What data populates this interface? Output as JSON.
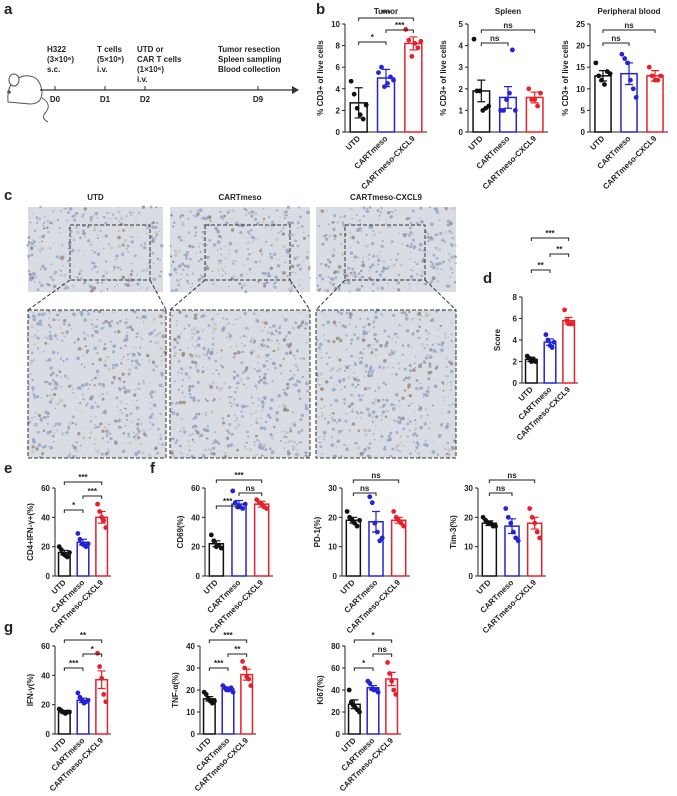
{
  "panel_labels": [
    "a",
    "b",
    "c",
    "d",
    "e",
    "f",
    "g"
  ],
  "timeline": {
    "events": [
      {
        "day": "D0",
        "lines": [
          "H322",
          "(3×10⁶)",
          "s.c."
        ]
      },
      {
        "day": "D1",
        "lines": [
          "T cells",
          "(5×10⁶)",
          "i.v."
        ]
      },
      {
        "day": "D2",
        "lines": [
          "UTD or",
          "CAR T cells",
          "(1×10⁶)",
          "i.v."
        ]
      },
      {
        "day": "D9",
        "lines": [
          "Tumor  resection",
          "Spleen sampling",
          "Blood collection"
        ]
      }
    ]
  },
  "ihc": {
    "titles": [
      "UTD",
      "CARTmeso",
      "CARTmeso-CXCL9"
    ]
  },
  "chart_data": [
    {
      "type": "bar",
      "title": "Tumor",
      "ylabel": "% CD3+ of live cells",
      "categories": [
        "UTD",
        "CARTmeso",
        "CARTmeso-CXCL9"
      ],
      "colors": [
        "#111111",
        "#2323d8",
        "#e8202a"
      ],
      "values": [
        2.7,
        5.0,
        8.2
      ],
      "errors": [
        1.4,
        0.8,
        0.6
      ],
      "points": [
        [
          4.7,
          3.5,
          2.2,
          1.6,
          1.2,
          2.5
        ],
        [
          5.5,
          6.0,
          4.2,
          4.5,
          5.1,
          4.8
        ],
        [
          9.5,
          8.5,
          7.0,
          8.2,
          7.8,
          8.4
        ]
      ],
      "ylim": [
        0,
        10
      ],
      "yticks": [
        0,
        2,
        4,
        6,
        8,
        10
      ],
      "brackets": [
        {
          "from": 0,
          "to": 1,
          "label": "*"
        },
        {
          "from": 1,
          "to": 2,
          "label": "***"
        },
        {
          "from": 0,
          "to": 2,
          "label": "***"
        }
      ]
    },
    {
      "type": "bar",
      "title": "Spleen",
      "ylabel": "% CD3+ of live cells",
      "categories": [
        "UTD",
        "CARTmeso",
        "CARTmeso-CXCL9"
      ],
      "colors": [
        "#111111",
        "#2323d8",
        "#e8202a"
      ],
      "values": [
        1.9,
        1.6,
        1.6
      ],
      "errors": [
        0.5,
        0.5,
        0.25
      ],
      "points": [
        [
          4.3,
          1.9,
          1.9,
          1.0,
          1.1,
          1.2
        ],
        [
          1.0,
          1.0,
          1.5,
          1.8,
          3.8,
          1.0
        ],
        [
          2.0,
          1.5,
          1.5,
          1.2,
          1.8
        ]
      ],
      "ylim": [
        0,
        5
      ],
      "yticks": [
        0,
        1,
        2,
        3,
        4,
        5
      ],
      "brackets": [
        {
          "from": 0,
          "to": 1,
          "label": "ns"
        },
        {
          "from": 0,
          "to": 2,
          "label": "ns"
        }
      ]
    },
    {
      "type": "bar",
      "title": "Peripheral blood",
      "ylabel": "% CD3+ of live cells",
      "categories": [
        "UTD",
        "CARTmeso",
        "CARTmeso-CXCL9"
      ],
      "colors": [
        "#111111",
        "#2323d8",
        "#e8202a"
      ],
      "values": [
        13,
        13.5,
        13
      ],
      "errors": [
        1.2,
        2.5,
        1.2
      ],
      "points": [
        [
          16,
          13,
          12,
          11,
          14,
          13.5
        ],
        [
          18,
          17,
          16,
          12,
          10,
          8
        ],
        [
          15,
          13,
          12,
          12,
          13
        ]
      ],
      "ylim": [
        0,
        25
      ],
      "yticks": [
        0,
        5,
        10,
        15,
        20,
        25
      ],
      "brackets": [
        {
          "from": 0,
          "to": 1,
          "label": "ns"
        },
        {
          "from": 0,
          "to": 2,
          "label": "ns"
        }
      ]
    },
    {
      "type": "bar",
      "ylabel": "Score",
      "categories": [
        "UTD",
        "CARTmeso",
        "CARTmeso-CXCL9"
      ],
      "colors": [
        "#111111",
        "#2323d8",
        "#e8202a"
      ],
      "values": [
        2.2,
        3.8,
        5.8
      ],
      "errors": [
        0.2,
        0.3,
        0.3
      ],
      "points": [
        [
          2.5,
          2.3,
          2.0,
          2.2,
          2.0
        ],
        [
          4.5,
          4.0,
          3.5,
          3.3,
          3.8
        ],
        [
          6.8,
          5.8,
          5.5,
          5.5,
          5.5
        ]
      ],
      "ylim": [
        0,
        8
      ],
      "yticks": [
        0,
        2,
        4,
        6,
        8
      ],
      "brackets": [
        {
          "from": 0,
          "to": 1,
          "label": "**"
        },
        {
          "from": 1,
          "to": 2,
          "label": "**"
        },
        {
          "from": 0,
          "to": 2,
          "label": "***"
        }
      ]
    },
    {
      "type": "bar",
      "ylabel": "CD4+IFN-γ+(%)",
      "categories": [
        "UTD",
        "CARTmeso",
        "CARTmeso-CXCL9"
      ],
      "colors": [
        "#111111",
        "#2323d8",
        "#e8202a"
      ],
      "values": [
        16,
        23,
        40
      ],
      "errors": [
        1.5,
        2,
        4
      ],
      "points": [
        [
          20,
          18,
          15,
          14,
          13,
          16
        ],
        [
          29,
          25,
          22,
          21,
          20,
          22
        ],
        [
          49,
          44,
          40,
          38,
          33
        ]
      ],
      "ylim": [
        0,
        60
      ],
      "yticks": [
        0,
        20,
        40,
        60
      ],
      "brackets": [
        {
          "from": 0,
          "to": 1,
          "label": "*"
        },
        {
          "from": 1,
          "to": 2,
          "label": "***"
        },
        {
          "from": 0,
          "to": 2,
          "label": "***"
        }
      ]
    },
    {
      "type": "bar",
      "ylabel": "CD69(%)",
      "categories": [
        "UTD",
        "CARTmeso",
        "CARTmeso-CXCL9"
      ],
      "colors": [
        "#111111",
        "#2323d8",
        "#e8202a"
      ],
      "values": [
        22,
        49,
        49
      ],
      "errors": [
        2,
        2.5,
        2
      ],
      "points": [
        [
          28,
          24,
          20,
          21,
          19
        ],
        [
          58,
          50,
          47,
          47,
          46,
          49
        ],
        [
          52,
          50,
          49,
          47,
          46
        ]
      ],
      "ylim": [
        0,
        60
      ],
      "yticks": [
        0,
        20,
        40,
        60
      ],
      "brackets": [
        {
          "from": 0,
          "to": 1,
          "label": "***"
        },
        {
          "from": 1,
          "to": 2,
          "label": "ns"
        },
        {
          "from": 0,
          "to": 2,
          "label": "***"
        }
      ]
    },
    {
      "type": "bar",
      "ylabel": "PD-1(%)",
      "categories": [
        "UTD",
        "CARTmeso",
        "CARTmeso-CXCL9"
      ],
      "colors": [
        "#111111",
        "#2323d8",
        "#e8202a"
      ],
      "values": [
        19,
        18.5,
        19
      ],
      "errors": [
        1,
        3.5,
        1
      ],
      "points": [
        [
          22,
          20,
          19,
          18,
          17,
          19
        ],
        [
          27,
          25,
          18,
          15,
          12,
          13
        ],
        [
          22,
          20,
          19,
          18,
          17
        ]
      ],
      "ylim": [
        0,
        30
      ],
      "yticks": [
        0,
        10,
        20,
        30
      ],
      "brackets": [
        {
          "from": 0,
          "to": 1,
          "label": "ns"
        },
        {
          "from": 0,
          "to": 2,
          "label": "ns"
        }
      ]
    },
    {
      "type": "bar",
      "ylabel": "Tim-3(%)",
      "categories": [
        "UTD",
        "CARTmeso",
        "CARTmeso-CXCL9"
      ],
      "colors": [
        "#111111",
        "#2323d8",
        "#e8202a"
      ],
      "values": [
        18,
        17,
        18
      ],
      "errors": [
        0.8,
        2.5,
        2
      ],
      "points": [
        [
          20,
          19,
          18,
          18,
          17,
          17
        ],
        [
          23,
          20,
          18,
          15,
          13,
          12
        ],
        [
          23,
          20,
          18,
          15,
          13
        ]
      ],
      "ylim": [
        0,
        30
      ],
      "yticks": [
        0,
        10,
        20,
        30
      ],
      "brackets": [
        {
          "from": 0,
          "to": 1,
          "label": "ns"
        },
        {
          "from": 0,
          "to": 2,
          "label": "ns"
        }
      ]
    },
    {
      "type": "bar",
      "ylabel": "IFN-γ(%)",
      "categories": [
        "UTD",
        "CARTmeso",
        "CARTmeso-CXCL9"
      ],
      "colors": [
        "#111111",
        "#2323d8",
        "#e8202a"
      ],
      "values": [
        15,
        23,
        37
      ],
      "errors": [
        1,
        1.5,
        6
      ],
      "points": [
        [
          17,
          16,
          15,
          14,
          15,
          15
        ],
        [
          28,
          25,
          23,
          21,
          22,
          23
        ],
        [
          55,
          46,
          38,
          27,
          22
        ]
      ],
      "ylim": [
        0,
        60
      ],
      "yticks": [
        0,
        20,
        40,
        60
      ],
      "brackets": [
        {
          "from": 0,
          "to": 1,
          "label": "***"
        },
        {
          "from": 1,
          "to": 2,
          "label": "*"
        },
        {
          "from": 0,
          "to": 2,
          "label": "**"
        }
      ]
    },
    {
      "type": "bar",
      "ylabel": "TNF-α(%)",
      "categories": [
        "UTD",
        "CARTmeso",
        "CARTmeso-CXCL9"
      ],
      "colors": [
        "#111111",
        "#2323d8",
        "#e8202a"
      ],
      "values": [
        16,
        20.5,
        27
      ],
      "errors": [
        1,
        0.8,
        2.5
      ],
      "points": [
        [
          19,
          18,
          16,
          15,
          14,
          15
        ],
        [
          22,
          21,
          20,
          20,
          21,
          19
        ],
        [
          33,
          30,
          26,
          25,
          22
        ]
      ],
      "ylim": [
        0,
        40
      ],
      "yticks": [
        0,
        10,
        20,
        30,
        40
      ],
      "brackets": [
        {
          "from": 0,
          "to": 1,
          "label": "***"
        },
        {
          "from": 1,
          "to": 2,
          "label": "**"
        },
        {
          "from": 0,
          "to": 2,
          "label": "***"
        }
      ]
    },
    {
      "type": "bar",
      "ylabel": "Ki67(%)",
      "categories": [
        "UTD",
        "CARTmeso",
        "CARTmeso-CXCL9"
      ],
      "colors": [
        "#111111",
        "#2323d8",
        "#e8202a"
      ],
      "values": [
        27,
        42,
        50
      ],
      "errors": [
        4,
        2,
        6
      ],
      "points": [
        [
          40,
          29,
          26,
          24,
          22,
          20
        ],
        [
          48,
          46,
          41,
          40,
          40,
          38
        ],
        [
          65,
          55,
          48,
          40,
          36
        ]
      ],
      "ylim": [
        0,
        80
      ],
      "yticks": [
        0,
        20,
        40,
        60,
        80
      ],
      "brackets": [
        {
          "from": 0,
          "to": 1,
          "label": "*"
        },
        {
          "from": 1,
          "to": 2,
          "label": "ns"
        },
        {
          "from": 0,
          "to": 2,
          "label": "*"
        }
      ]
    }
  ]
}
